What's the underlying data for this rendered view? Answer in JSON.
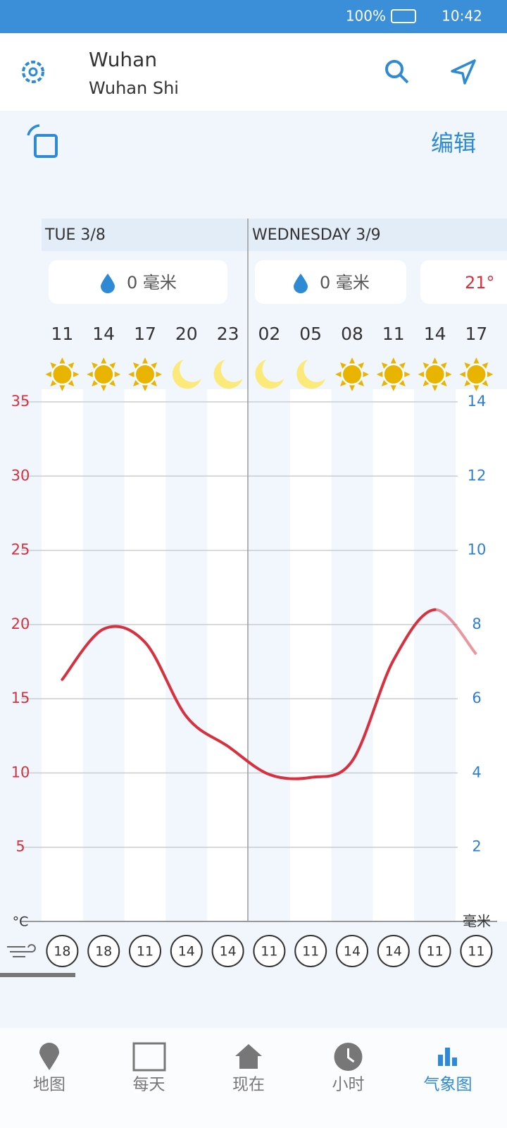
{
  "status_bar": {
    "battery": "100%",
    "time": "10:42"
  },
  "header": {
    "city": "Wuhan",
    "region": "Wuhan Shi"
  },
  "toolbar": {
    "edit": "编辑"
  },
  "days": [
    {
      "label": "TUE 3/8",
      "precipitation": "0 毫米"
    },
    {
      "label": "WEDNESDAY 3/9",
      "precipitation": "0 毫米"
    },
    {
      "precipitation": "21°"
    }
  ],
  "chart_data": {
    "type": "line",
    "categories": [
      "11",
      "14",
      "17",
      "20",
      "23",
      "02",
      "05",
      "08",
      "11",
      "14",
      "17"
    ],
    "icons": [
      "sun",
      "sun",
      "sun",
      "moon",
      "moon",
      "moon",
      "moon",
      "sun",
      "sun",
      "sun",
      "sun"
    ],
    "series": [
      {
        "name": "temperature",
        "color": "#d7303f",
        "values": [
          16.3,
          19.7,
          18.8,
          13.8,
          11.8,
          9.9,
          9.7,
          10.8,
          17.6,
          21.0,
          18.0
        ]
      }
    ],
    "ylim": [
      0,
      35
    ],
    "yticks": [
      5,
      10,
      15,
      20,
      25,
      30,
      35
    ],
    "ylabel": "°C",
    "y2lim": [
      0,
      14
    ],
    "y2ticks": [
      2,
      4,
      6,
      8,
      10,
      12,
      14
    ],
    "y2label": "毫米",
    "wind": [
      18,
      18,
      11,
      14,
      14,
      11,
      11,
      14,
      14,
      11,
      11
    ],
    "grid": true
  },
  "nav": {
    "items": [
      "地图",
      "每天",
      "现在",
      "小时",
      "气象图"
    ],
    "active": 4
  }
}
